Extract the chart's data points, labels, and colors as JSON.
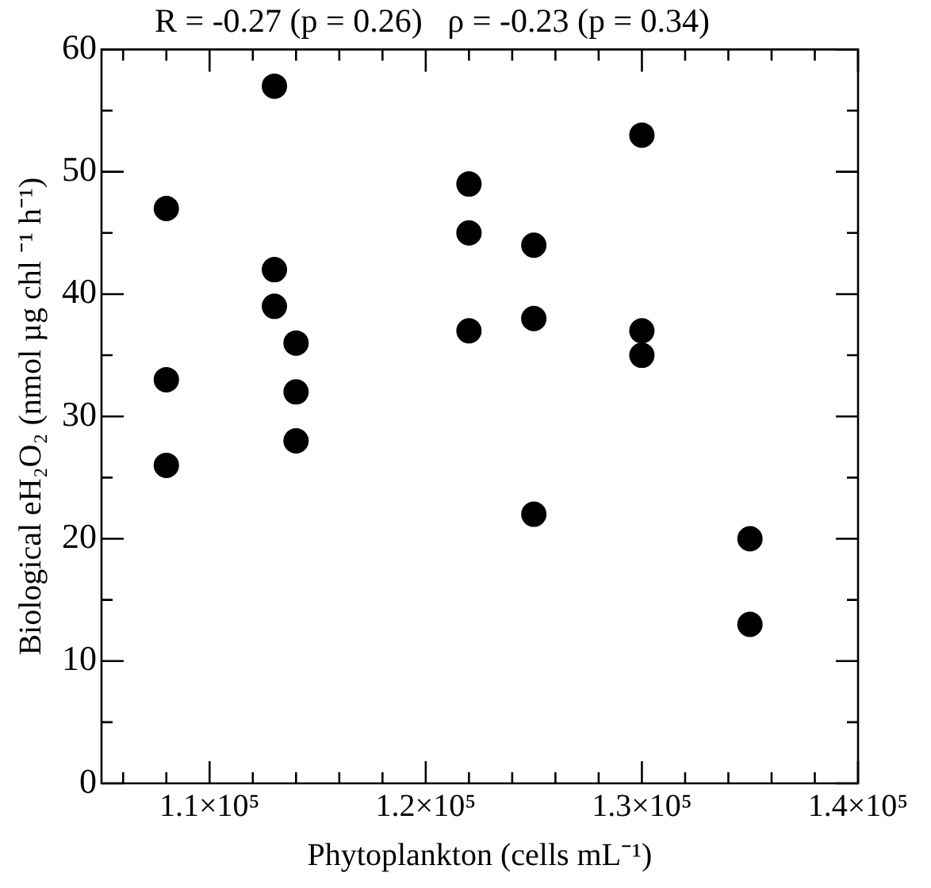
{
  "chart_data": {
    "type": "scatter",
    "title": "R = -0.27 (p = 0.26)   ρ = -0.23 (p = 0.34)",
    "xlabel": "Phytoplankton (cells mL⁻¹)",
    "ylabel": "Biological eH₂O₂ (nmol µg chl ⁻¹ h⁻¹)",
    "x": [
      108000,
      108000,
      108000,
      113000,
      113000,
      113000,
      114000,
      114000,
      114000,
      122000,
      122000,
      122000,
      125000,
      125000,
      125000,
      130000,
      130000,
      130000,
      135000,
      135000
    ],
    "values": [
      47,
      33,
      26,
      57,
      42,
      39,
      36,
      32,
      28,
      49,
      45,
      37,
      44,
      38,
      22,
      53,
      37,
      35,
      20,
      13
    ],
    "color": "#000000",
    "marker": "circle",
    "grid": false,
    "legend": false,
    "xlim": [
      105000,
      140000
    ],
    "xticks": [
      {
        "value": 106000,
        "label": null
      },
      {
        "value": 108000,
        "label": null
      },
      {
        "value": 110000,
        "label": "1.1×10⁵"
      },
      {
        "value": 112000,
        "label": null
      },
      {
        "value": 114000,
        "label": null
      },
      {
        "value": 116000,
        "label": null
      },
      {
        "value": 118000,
        "label": null
      },
      {
        "value": 120000,
        "label": "1.2×10⁵"
      },
      {
        "value": 122000,
        "label": null
      },
      {
        "value": 124000,
        "label": null
      },
      {
        "value": 126000,
        "label": null
      },
      {
        "value": 128000,
        "label": null
      },
      {
        "value": 130000,
        "label": "1.3×10⁵"
      },
      {
        "value": 132000,
        "label": null
      },
      {
        "value": 134000,
        "label": null
      },
      {
        "value": 136000,
        "label": null
      },
      {
        "value": 138000,
        "label": null
      },
      {
        "value": 140000,
        "label": "1.4×10⁵"
      }
    ],
    "ylim": [
      0,
      60
    ],
    "yticks": [
      0,
      {
        "value": 5,
        "label": null
      },
      10,
      {
        "value": 15,
        "label": null
      },
      20,
      {
        "value": 25,
        "label": null
      },
      30,
      {
        "value": 35,
        "label": null
      },
      40,
      {
        "value": 45,
        "label": null
      },
      50,
      {
        "value": 55,
        "label": null
      },
      60
    ]
  }
}
